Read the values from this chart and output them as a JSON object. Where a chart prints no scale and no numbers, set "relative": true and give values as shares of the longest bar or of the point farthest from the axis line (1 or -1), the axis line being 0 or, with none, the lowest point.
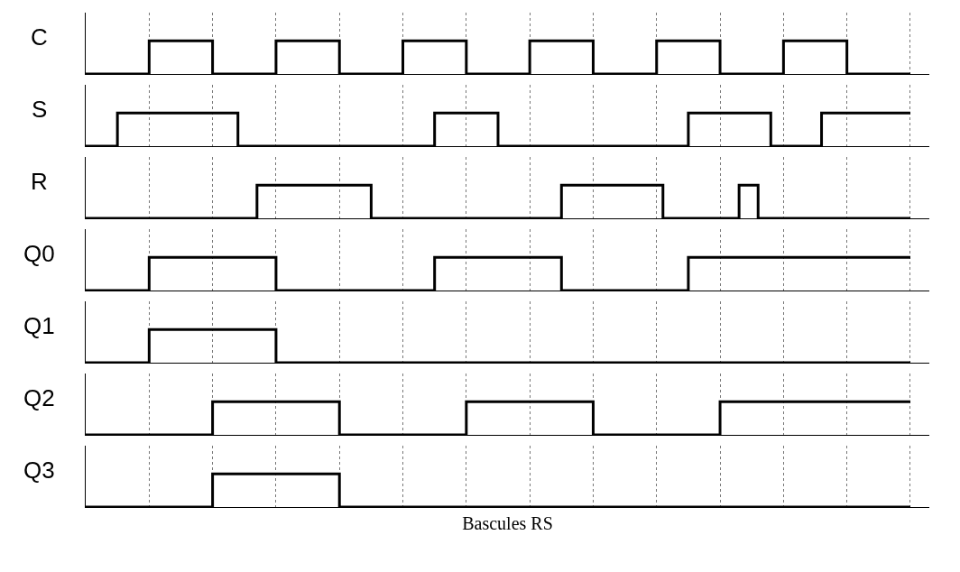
{
  "chart_data": [
    {
      "type": "step",
      "ylabel": "C",
      "relative": true,
      "grid": "x",
      "line_style": "solid",
      "marker": "none",
      "categories": [
        null,
        null,
        null,
        null,
        null,
        null,
        null,
        null,
        null,
        null,
        null,
        null,
        null,
        null,
        null,
        null,
        null,
        null,
        null,
        null,
        null,
        null,
        null,
        null,
        null,
        null,
        null,
        null,
        null,
        null,
        null,
        null,
        null,
        null,
        null,
        null,
        null,
        null,
        null,
        null,
        null,
        null,
        null,
        null,
        null,
        null,
        null,
        null,
        null,
        null,
        null,
        null,
        null,
        null,
        null,
        null,
        null,
        null,
        null,
        null,
        null,
        null,
        null,
        null,
        null,
        null,
        null,
        null,
        null,
        null,
        null,
        null,
        null,
        null,
        null,
        null,
        null,
        null,
        null,
        null,
        null,
        null,
        null,
        null,
        null,
        null,
        null,
        null,
        null,
        null,
        null,
        null,
        null,
        null,
        null,
        null,
        null,
        null,
        null,
        null,
        null,
        null,
        null,
        null,
        null,
        null,
        null,
        null,
        null,
        null,
        null,
        null,
        null,
        null,
        null,
        null,
        null,
        null,
        null,
        null,
        null,
        null,
        null,
        null,
        null,
        null,
        null,
        null,
        null,
        null,
        null
      ],
      "series": [
        {
          "color": "#000000",
          "values": [
            0,
            0,
            0,
            0,
            0,
            0,
            0,
            0,
            0,
            0,
            1,
            1,
            1,
            1,
            1,
            1,
            1,
            1,
            1,
            1,
            0,
            0,
            0,
            0,
            0,
            0,
            0,
            0,
            0,
            0,
            1,
            1,
            1,
            1,
            1,
            1,
            1,
            1,
            1,
            1,
            0,
            0,
            0,
            0,
            0,
            0,
            0,
            0,
            0,
            0,
            1,
            1,
            1,
            1,
            1,
            1,
            1,
            1,
            1,
            1,
            0,
            0,
            0,
            0,
            0,
            0,
            0,
            0,
            0,
            0,
            1,
            1,
            1,
            1,
            1,
            1,
            1,
            1,
            1,
            1,
            0,
            0,
            0,
            0,
            0,
            0,
            0,
            0,
            0,
            0,
            1,
            1,
            1,
            1,
            1,
            1,
            1,
            1,
            1,
            1,
            0,
            0,
            0,
            0,
            0,
            0,
            0,
            0,
            0,
            0,
            1,
            1,
            1,
            1,
            1,
            1,
            1,
            1,
            1,
            1,
            0,
            0,
            0,
            0,
            0,
            0,
            0,
            0,
            0,
            0,
            0
          ]
        }
      ]
    },
    {
      "type": "step",
      "ylabel": "S",
      "relative": true,
      "grid": "x",
      "line_style": "solid",
      "marker": "none",
      "categories": [
        null,
        null,
        null,
        null,
        null,
        null,
        null,
        null,
        null,
        null,
        null,
        null,
        null,
        null,
        null,
        null,
        null,
        null,
        null,
        null,
        null,
        null,
        null,
        null,
        null,
        null,
        null,
        null,
        null,
        null,
        null,
        null,
        null,
        null,
        null,
        null,
        null,
        null,
        null,
        null,
        null,
        null,
        null,
        null,
        null,
        null,
        null,
        null,
        null,
        null,
        null,
        null,
        null,
        null,
        null,
        null,
        null,
        null,
        null,
        null,
        null,
        null,
        null,
        null,
        null,
        null,
        null,
        null,
        null,
        null,
        null,
        null,
        null,
        null,
        null,
        null,
        null,
        null,
        null,
        null,
        null,
        null,
        null,
        null,
        null,
        null,
        null,
        null,
        null,
        null,
        null,
        null,
        null,
        null,
        null,
        null,
        null,
        null,
        null,
        null,
        null,
        null,
        null,
        null,
        null,
        null,
        null,
        null,
        null,
        null,
        null,
        null,
        null,
        null,
        null,
        null,
        null,
        null,
        null,
        null,
        null,
        null,
        null,
        null,
        null,
        null,
        null,
        null,
        null,
        null,
        null
      ],
      "series": [
        {
          "color": "#000000",
          "values": [
            0,
            0,
            0,
            0,
            0,
            1,
            1,
            1,
            1,
            1,
            1,
            1,
            1,
            1,
            1,
            1,
            1,
            1,
            1,
            1,
            1,
            1,
            1,
            1,
            0,
            0,
            0,
            0,
            0,
            0,
            0,
            0,
            0,
            0,
            0,
            0,
            0,
            0,
            0,
            0,
            0,
            0,
            0,
            0,
            0,
            0,
            0,
            0,
            0,
            0,
            0,
            0,
            0,
            0,
            0,
            1,
            1,
            1,
            1,
            1,
            1,
            1,
            1,
            1,
            1,
            0,
            0,
            0,
            0,
            0,
            0,
            0,
            0,
            0,
            0,
            0,
            0,
            0,
            0,
            0,
            0,
            0,
            0,
            0,
            0,
            0,
            0,
            0,
            0,
            0,
            0,
            0,
            0,
            0,
            0,
            1,
            1,
            1,
            1,
            1,
            1,
            1,
            1,
            1,
            1,
            1,
            1,
            1,
            0,
            0,
            0,
            0,
            0,
            0,
            0,
            0,
            1,
            1,
            1,
            1,
            1,
            1,
            1,
            1,
            1,
            1,
            1,
            1,
            1,
            1,
            1
          ]
        }
      ]
    },
    {
      "type": "step",
      "ylabel": "R",
      "relative": true,
      "grid": "x",
      "line_style": "solid",
      "marker": "none",
      "categories": [
        null,
        null,
        null,
        null,
        null,
        null,
        null,
        null,
        null,
        null,
        null,
        null,
        null,
        null,
        null,
        null,
        null,
        null,
        null,
        null,
        null,
        null,
        null,
        null,
        null,
        null,
        null,
        null,
        null,
        null,
        null,
        null,
        null,
        null,
        null,
        null,
        null,
        null,
        null,
        null,
        null,
        null,
        null,
        null,
        null,
        null,
        null,
        null,
        null,
        null,
        null,
        null,
        null,
        null,
        null,
        null,
        null,
        null,
        null,
        null,
        null,
        null,
        null,
        null,
        null,
        null,
        null,
        null,
        null,
        null,
        null,
        null,
        null,
        null,
        null,
        null,
        null,
        null,
        null,
        null,
        null,
        null,
        null,
        null,
        null,
        null,
        null,
        null,
        null,
        null,
        null,
        null,
        null,
        null,
        null,
        null,
        null,
        null,
        null,
        null,
        null,
        null,
        null,
        null,
        null,
        null,
        null,
        null,
        null,
        null,
        null,
        null,
        null,
        null,
        null,
        null,
        null,
        null,
        null,
        null,
        null,
        null,
        null,
        null,
        null,
        null,
        null,
        null,
        null,
        null,
        null
      ],
      "series": [
        {
          "color": "#000000",
          "values": [
            0,
            0,
            0,
            0,
            0,
            0,
            0,
            0,
            0,
            0,
            0,
            0,
            0,
            0,
            0,
            0,
            0,
            0,
            0,
            0,
            0,
            0,
            0,
            0,
            0,
            0,
            0,
            1,
            1,
            1,
            1,
            1,
            1,
            1,
            1,
            1,
            1,
            1,
            1,
            1,
            1,
            1,
            1,
            1,
            1,
            0,
            0,
            0,
            0,
            0,
            0,
            0,
            0,
            0,
            0,
            0,
            0,
            0,
            0,
            0,
            0,
            0,
            0,
            0,
            0,
            0,
            0,
            0,
            0,
            0,
            0,
            0,
            0,
            0,
            0,
            1,
            1,
            1,
            1,
            1,
            1,
            1,
            1,
            1,
            1,
            1,
            1,
            1,
            1,
            1,
            1,
            0,
            0,
            0,
            0,
            0,
            0,
            0,
            0,
            0,
            0,
            0,
            0,
            1,
            1,
            1,
            0,
            0,
            0,
            0,
            0,
            0,
            0,
            0,
            0,
            0,
            0,
            0,
            0,
            0,
            0,
            0,
            0,
            0,
            0,
            0,
            0,
            0,
            0,
            0,
            0
          ]
        }
      ]
    },
    {
      "type": "step",
      "ylabel": "Q0",
      "relative": true,
      "grid": "x",
      "line_style": "solid",
      "marker": "none",
      "categories": [
        null,
        null,
        null,
        null,
        null,
        null,
        null,
        null,
        null,
        null,
        null,
        null,
        null,
        null,
        null,
        null,
        null,
        null,
        null,
        null,
        null,
        null,
        null,
        null,
        null,
        null,
        null,
        null,
        null,
        null,
        null,
        null,
        null,
        null,
        null,
        null,
        null,
        null,
        null,
        null,
        null,
        null,
        null,
        null,
        null,
        null,
        null,
        null,
        null,
        null,
        null,
        null,
        null,
        null,
        null,
        null,
        null,
        null,
        null,
        null,
        null,
        null,
        null,
        null,
        null,
        null,
        null,
        null,
        null,
        null,
        null,
        null,
        null,
        null,
        null,
        null,
        null,
        null,
        null,
        null,
        null,
        null,
        null,
        null,
        null,
        null,
        null,
        null,
        null,
        null,
        null,
        null,
        null,
        null,
        null,
        null,
        null,
        null,
        null,
        null,
        null,
        null,
        null,
        null,
        null,
        null,
        null,
        null,
        null,
        null,
        null,
        null,
        null,
        null,
        null,
        null,
        null,
        null,
        null,
        null,
        null,
        null,
        null,
        null,
        null,
        null,
        null,
        null,
        null,
        null,
        null
      ],
      "series": [
        {
          "color": "#000000",
          "values": [
            0,
            0,
            0,
            0,
            0,
            0,
            0,
            0,
            0,
            0,
            1,
            1,
            1,
            1,
            1,
            1,
            1,
            1,
            1,
            1,
            1,
            1,
            1,
            1,
            1,
            1,
            1,
            1,
            1,
            1,
            0,
            0,
            0,
            0,
            0,
            0,
            0,
            0,
            0,
            0,
            0,
            0,
            0,
            0,
            0,
            0,
            0,
            0,
            0,
            0,
            0,
            0,
            0,
            0,
            0,
            1,
            1,
            1,
            1,
            1,
            1,
            1,
            1,
            1,
            1,
            1,
            1,
            1,
            1,
            1,
            1,
            1,
            1,
            1,
            1,
            0,
            0,
            0,
            0,
            0,
            0,
            0,
            0,
            0,
            0,
            0,
            0,
            0,
            0,
            0,
            0,
            0,
            0,
            0,
            0,
            1,
            1,
            1,
            1,
            1,
            1,
            1,
            1,
            1,
            1,
            1,
            1,
            1,
            1,
            1,
            1,
            1,
            1,
            1,
            1,
            1,
            1,
            1,
            1,
            1,
            1,
            1,
            1,
            1,
            1,
            1,
            1,
            1,
            1,
            1,
            1
          ]
        }
      ]
    },
    {
      "type": "step",
      "ylabel": "Q1",
      "relative": true,
      "grid": "x",
      "line_style": "solid",
      "marker": "none",
      "categories": [
        null,
        null,
        null,
        null,
        null,
        null,
        null,
        null,
        null,
        null,
        null,
        null,
        null,
        null,
        null,
        null,
        null,
        null,
        null,
        null,
        null,
        null,
        null,
        null,
        null,
        null,
        null,
        null,
        null,
        null,
        null,
        null,
        null,
        null,
        null,
        null,
        null,
        null,
        null,
        null,
        null,
        null,
        null,
        null,
        null,
        null,
        null,
        null,
        null,
        null,
        null,
        null,
        null,
        null,
        null,
        null,
        null,
        null,
        null,
        null,
        null,
        null,
        null,
        null,
        null,
        null,
        null,
        null,
        null,
        null,
        null,
        null,
        null,
        null,
        null,
        null,
        null,
        null,
        null,
        null,
        null,
        null,
        null,
        null,
        null,
        null,
        null,
        null,
        null,
        null,
        null,
        null,
        null,
        null,
        null,
        null,
        null,
        null,
        null,
        null,
        null,
        null,
        null,
        null,
        null,
        null,
        null,
        null,
        null,
        null,
        null,
        null,
        null,
        null,
        null,
        null,
        null,
        null,
        null,
        null,
        null,
        null,
        null,
        null,
        null,
        null,
        null,
        null,
        null,
        null,
        null
      ],
      "series": [
        {
          "color": "#000000",
          "values": [
            0,
            0,
            0,
            0,
            0,
            0,
            0,
            0,
            0,
            0,
            1,
            1,
            1,
            1,
            1,
            1,
            1,
            1,
            1,
            1,
            1,
            1,
            1,
            1,
            1,
            1,
            1,
            1,
            1,
            1,
            0,
            0,
            0,
            0,
            0,
            0,
            0,
            0,
            0,
            0,
            0,
            0,
            0,
            0,
            0,
            0,
            0,
            0,
            0,
            0,
            0,
            0,
            0,
            0,
            0,
            0,
            0,
            0,
            0,
            0,
            0,
            0,
            0,
            0,
            0,
            0,
            0,
            0,
            0,
            0,
            0,
            0,
            0,
            0,
            0,
            0,
            0,
            0,
            0,
            0,
            0,
            0,
            0,
            0,
            0,
            0,
            0,
            0,
            0,
            0,
            0,
            0,
            0,
            0,
            0,
            0,
            0,
            0,
            0,
            0,
            0,
            0,
            0,
            0,
            0,
            0,
            0,
            0,
            0,
            0,
            0,
            0,
            0,
            0,
            0,
            0,
            0,
            0,
            0,
            0,
            0,
            0,
            0,
            0,
            0,
            0,
            0,
            0,
            0,
            0,
            0
          ]
        }
      ]
    },
    {
      "type": "step",
      "ylabel": "Q2",
      "relative": true,
      "grid": "x",
      "line_style": "solid",
      "marker": "none",
      "categories": [
        null,
        null,
        null,
        null,
        null,
        null,
        null,
        null,
        null,
        null,
        null,
        null,
        null,
        null,
        null,
        null,
        null,
        null,
        null,
        null,
        null,
        null,
        null,
        null,
        null,
        null,
        null,
        null,
        null,
        null,
        null,
        null,
        null,
        null,
        null,
        null,
        null,
        null,
        null,
        null,
        null,
        null,
        null,
        null,
        null,
        null,
        null,
        null,
        null,
        null,
        null,
        null,
        null,
        null,
        null,
        null,
        null,
        null,
        null,
        null,
        null,
        null,
        null,
        null,
        null,
        null,
        null,
        null,
        null,
        null,
        null,
        null,
        null,
        null,
        null,
        null,
        null,
        null,
        null,
        null,
        null,
        null,
        null,
        null,
        null,
        null,
        null,
        null,
        null,
        null,
        null,
        null,
        null,
        null,
        null,
        null,
        null,
        null,
        null,
        null,
        null,
        null,
        null,
        null,
        null,
        null,
        null,
        null,
        null,
        null,
        null,
        null,
        null,
        null,
        null,
        null,
        null,
        null,
        null,
        null,
        null,
        null,
        null,
        null,
        null,
        null,
        null,
        null,
        null,
        null,
        null
      ],
      "series": [
        {
          "color": "#000000",
          "values": [
            0,
            0,
            0,
            0,
            0,
            0,
            0,
            0,
            0,
            0,
            0,
            0,
            0,
            0,
            0,
            0,
            0,
            0,
            0,
            0,
            1,
            1,
            1,
            1,
            1,
            1,
            1,
            1,
            1,
            1,
            1,
            1,
            1,
            1,
            1,
            1,
            1,
            1,
            1,
            1,
            0,
            0,
            0,
            0,
            0,
            0,
            0,
            0,
            0,
            0,
            0,
            0,
            0,
            0,
            0,
            0,
            0,
            0,
            0,
            0,
            1,
            1,
            1,
            1,
            1,
            1,
            1,
            1,
            1,
            1,
            1,
            1,
            1,
            1,
            1,
            1,
            1,
            1,
            1,
            1,
            0,
            0,
            0,
            0,
            0,
            0,
            0,
            0,
            0,
            0,
            0,
            0,
            0,
            0,
            0,
            0,
            0,
            0,
            0,
            0,
            1,
            1,
            1,
            1,
            1,
            1,
            1,
            1,
            1,
            1,
            1,
            1,
            1,
            1,
            1,
            1,
            1,
            1,
            1,
            1,
            1,
            1,
            1,
            1,
            1,
            1,
            1,
            1,
            1,
            1,
            1
          ]
        }
      ]
    },
    {
      "type": "step",
      "ylabel": "Q3",
      "xlabel": "Bascules RS",
      "relative": true,
      "grid": "x",
      "line_style": "solid",
      "marker": "none",
      "categories": [
        null,
        null,
        null,
        null,
        null,
        null,
        null,
        null,
        null,
        null,
        null,
        null,
        null,
        null,
        null,
        null,
        null,
        null,
        null,
        null,
        null,
        null,
        null,
        null,
        null,
        null,
        null,
        null,
        null,
        null,
        null,
        null,
        null,
        null,
        null,
        null,
        null,
        null,
        null,
        null,
        null,
        null,
        null,
        null,
        null,
        null,
        null,
        null,
        null,
        null,
        null,
        null,
        null,
        null,
        null,
        null,
        null,
        null,
        null,
        null,
        null,
        null,
        null,
        null,
        null,
        null,
        null,
        null,
        null,
        null,
        null,
        null,
        null,
        null,
        null,
        null,
        null,
        null,
        null,
        null,
        null,
        null,
        null,
        null,
        null,
        null,
        null,
        null,
        null,
        null,
        null,
        null,
        null,
        null,
        null,
        null,
        null,
        null,
        null,
        null,
        null,
        null,
        null,
        null,
        null,
        null,
        null,
        null,
        null,
        null,
        null,
        null,
        null,
        null,
        null,
        null,
        null,
        null,
        null,
        null,
        null,
        null,
        null,
        null,
        null,
        null,
        null,
        null,
        null,
        null,
        null
      ],
      "series": [
        {
          "color": "#000000",
          "values": [
            0,
            0,
            0,
            0,
            0,
            0,
            0,
            0,
            0,
            0,
            0,
            0,
            0,
            0,
            0,
            0,
            0,
            0,
            0,
            0,
            1,
            1,
            1,
            1,
            1,
            1,
            1,
            1,
            1,
            1,
            1,
            1,
            1,
            1,
            1,
            1,
            1,
            1,
            1,
            1,
            0,
            0,
            0,
            0,
            0,
            0,
            0,
            0,
            0,
            0,
            0,
            0,
            0,
            0,
            0,
            0,
            0,
            0,
            0,
            0,
            0,
            0,
            0,
            0,
            0,
            0,
            0,
            0,
            0,
            0,
            0,
            0,
            0,
            0,
            0,
            0,
            0,
            0,
            0,
            0,
            0,
            0,
            0,
            0,
            0,
            0,
            0,
            0,
            0,
            0,
            0,
            0,
            0,
            0,
            0,
            0,
            0,
            0,
            0,
            0,
            0,
            0,
            0,
            0,
            0,
            0,
            0,
            0,
            0,
            0,
            0,
            0,
            0,
            0,
            0,
            0,
            0,
            0,
            0,
            0,
            0,
            0,
            0,
            0,
            0,
            0,
            0,
            0,
            0,
            0,
            0
          ]
        }
      ]
    }
  ]
}
